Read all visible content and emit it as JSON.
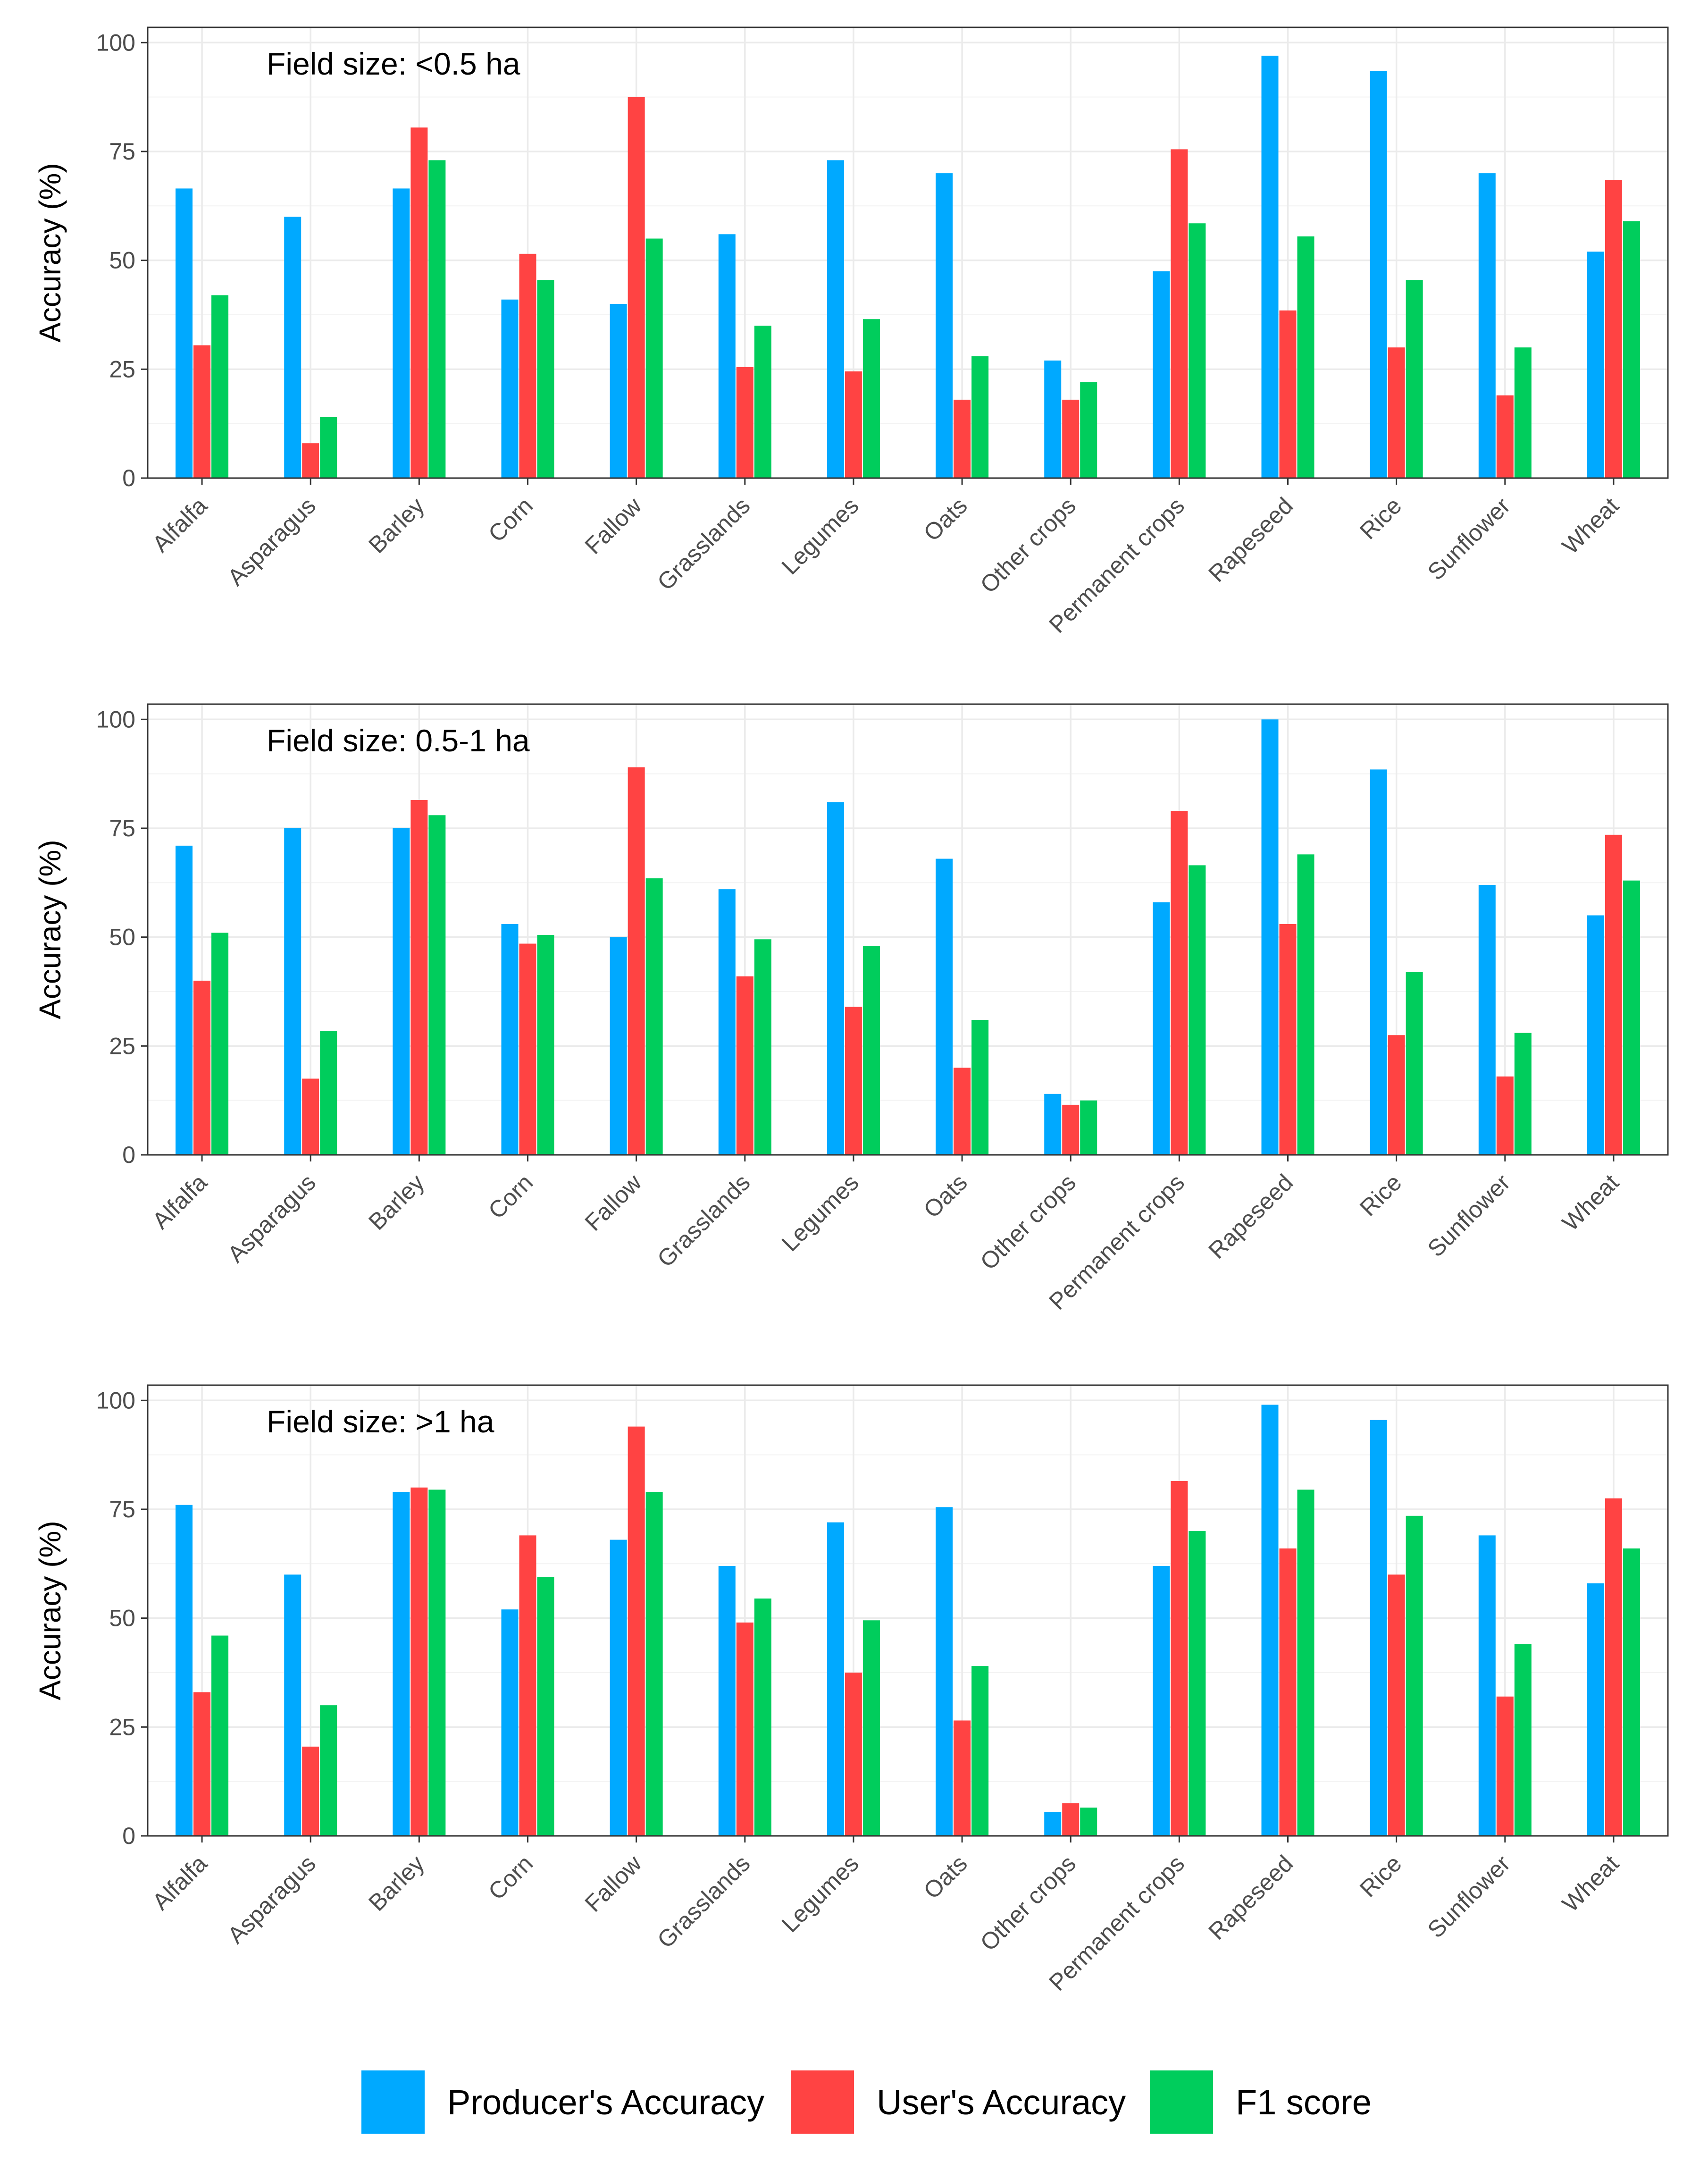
{
  "chart_data": {
    "type": "bar",
    "categories": [
      "Alfalfa",
      "Asparagus",
      "Barley",
      "Corn",
      "Fallow",
      "Grasslands",
      "Legumes",
      "Oats",
      "Other crops",
      "Permanent crops",
      "Rapeseed",
      "Rice",
      "Sunflower",
      "Wheat"
    ],
    "ylabel": "Accuracy (%)",
    "xlabel": "",
    "ylim": [
      0,
      100
    ],
    "yticks": [
      0,
      25,
      50,
      75,
      100
    ],
    "grid": true,
    "legend": {
      "placement": "bottom",
      "entries": [
        {
          "name": "Producer's Accuracy",
          "color": "#00A9FF"
        },
        {
          "name": "User's Accuracy",
          "color": "#FF4343"
        },
        {
          "name": "F1 score",
          "color": "#00CD5C"
        }
      ]
    },
    "panels": [
      {
        "title": "Field size: <0.5 ha",
        "series": [
          {
            "name": "Producer's Accuracy",
            "values": [
              66.5,
              60,
              66.5,
              41,
              40,
              56,
              73,
              70,
              27,
              47.5,
              97,
              93.5,
              70,
              52
            ]
          },
          {
            "name": "User's Accuracy",
            "values": [
              30.5,
              8,
              80.5,
              51.5,
              87.5,
              25.5,
              24.5,
              18,
              18,
              75.5,
              38.5,
              30,
              19,
              68.5
            ]
          },
          {
            "name": "F1 score",
            "values": [
              42,
              14,
              73,
              45.5,
              55,
              35,
              36.5,
              28,
              22,
              58.5,
              55.5,
              45.5,
              30,
              59
            ]
          }
        ]
      },
      {
        "title": "Field size: 0.5-1 ha",
        "series": [
          {
            "name": "Producer's Accuracy",
            "values": [
              71,
              75,
              75,
              53,
              50,
              61,
              81,
              68,
              14,
              58,
              100,
              88.5,
              62,
              55
            ]
          },
          {
            "name": "User's Accuracy",
            "values": [
              40,
              17.5,
              81.5,
              48.5,
              89,
              41,
              34,
              20,
              11.5,
              79,
              53,
              27.5,
              18,
              73.5
            ]
          },
          {
            "name": "F1 score",
            "values": [
              51,
              28.5,
              78,
              50.5,
              63.5,
              49.5,
              48,
              31,
              12.5,
              66.5,
              69,
              42,
              28,
              63
            ]
          }
        ]
      },
      {
        "title": "Field size: >1 ha",
        "series": [
          {
            "name": "Producer's Accuracy",
            "values": [
              76,
              60,
              79,
              52,
              68,
              62,
              72,
              75.5,
              5.5,
              62,
              99,
              95.5,
              69,
              58
            ]
          },
          {
            "name": "User's Accuracy",
            "values": [
              33,
              20.5,
              80,
              69,
              94,
              49,
              37.5,
              26.5,
              7.5,
              81.5,
              66,
              60,
              32,
              77.5
            ]
          },
          {
            "name": "F1 score",
            "values": [
              46,
              30,
              79.5,
              59.5,
              79,
              54.5,
              49.5,
              39,
              6.5,
              70,
              79.5,
              73.5,
              44,
              66
            ]
          }
        ]
      }
    ]
  }
}
